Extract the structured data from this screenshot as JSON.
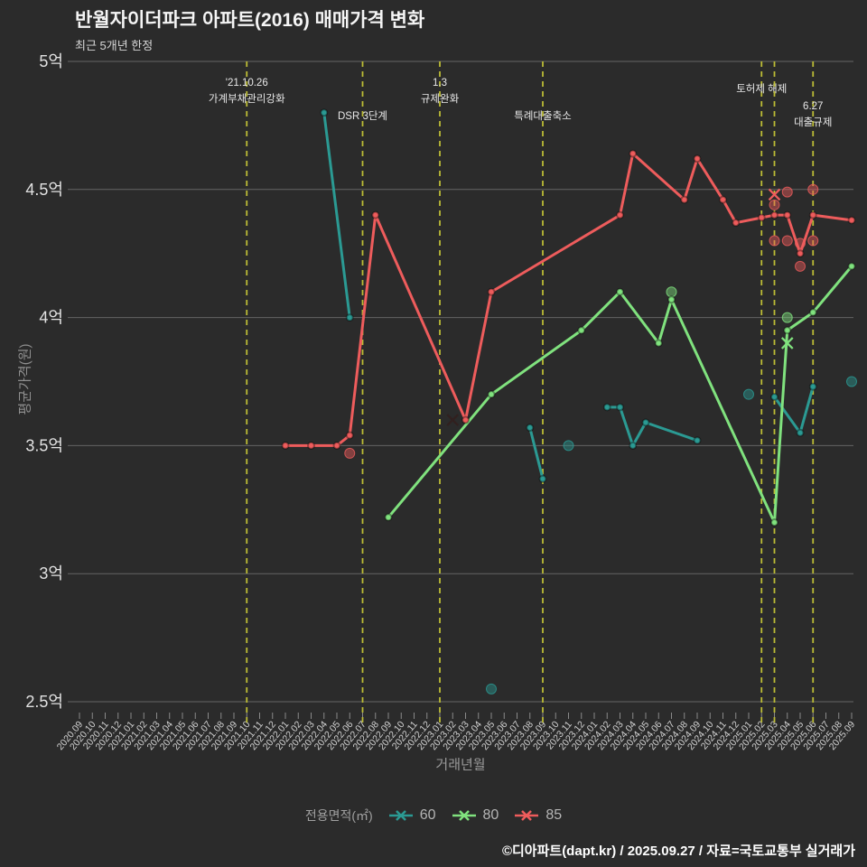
{
  "header": {
    "title": "반월자이더파크 아파트(2016) 매매가격 변화",
    "subtitle": "최근 5개년 한정"
  },
  "footer": {
    "credit": "©디아파트(dapt.kr) / 2025.09.27 / 자료=국토교통부 실거래가"
  },
  "legend": {
    "label": "전용면적(㎡)",
    "items": [
      {
        "label": "60",
        "color": "#2b9a93"
      },
      {
        "label": "80",
        "color": "#80e27e"
      },
      {
        "label": "85",
        "color": "#ee5c5c"
      }
    ]
  },
  "colors": {
    "background": "#2b2b2b",
    "gridline": "#787878",
    "vline": "#bcbc35",
    "tick": "#8a8a8a",
    "annotation_text": "#e8e8e8",
    "ytick_text": "#e2e2e2",
    "xtick_text": "#d2d2d2"
  },
  "chart_data": {
    "type": "line",
    "title": "반월자이더파크 아파트(2016) 매매가격 변화",
    "subtitle": "최근 5개년 한정",
    "xlabel": "거래년월",
    "ylabel": "평균가격(원)",
    "unit": "억",
    "ylim": [
      2.5,
      5.0
    ],
    "grid": true,
    "legend_position": "bottom",
    "yticks": [
      {
        "value": 2.5,
        "label": "2.5억"
      },
      {
        "value": 3.0,
        "label": "3억"
      },
      {
        "value": 3.5,
        "label": "3.5억"
      },
      {
        "value": 4.0,
        "label": "4억"
      },
      {
        "value": 4.5,
        "label": "4.5억"
      },
      {
        "value": 5.0,
        "label": "5억"
      }
    ],
    "x_categories": [
      "2020.09",
      "2020.10",
      "2020.11",
      "2020.12",
      "2021.01",
      "2021.02",
      "2021.03",
      "2021.04",
      "2021.05",
      "2021.06",
      "2021.07",
      "2021.08",
      "2021.09",
      "2021.10",
      "2021.11",
      "2021.12",
      "2022.01",
      "2022.02",
      "2022.03",
      "2022.04",
      "2022.05",
      "2022.06",
      "2022.07",
      "2022.08",
      "2022.09",
      "2022.10",
      "2022.11",
      "2022.12",
      "2023.01",
      "2023.02",
      "2023.03",
      "2023.04",
      "2023.05",
      "2023.06",
      "2023.07",
      "2023.08",
      "2023.09",
      "2023.10",
      "2023.11",
      "2023.12",
      "2024.01",
      "2024.02",
      "2024.03",
      "2024.04",
      "2024.05",
      "2024.06",
      "2024.07",
      "2024.08",
      "2024.09",
      "2024.10",
      "2024.11",
      "2024.12",
      "2025.01",
      "2025.02",
      "2025.03",
      "2025.04",
      "2025.05",
      "2025.06",
      "2025.07",
      "2025.08",
      "2025.09"
    ],
    "series": [
      {
        "name": "60",
        "color": "#2b9a93",
        "segments": [
          [
            [
              "2022.04",
              4.8
            ],
            [
              "2022.06",
              4.0
            ]
          ],
          [
            [
              "2023.08",
              3.57
            ],
            [
              "2023.09",
              3.37
            ]
          ],
          [
            [
              "2024.02",
              3.65
            ],
            [
              "2024.03",
              3.65
            ],
            [
              "2024.04",
              3.5
            ],
            [
              "2024.05",
              3.59
            ],
            [
              "2024.09",
              3.52
            ]
          ],
          [
            [
              "2025.03",
              3.69
            ],
            [
              "2025.05",
              3.55
            ],
            [
              "2025.06",
              3.73
            ]
          ]
        ],
        "scatter": [
          [
            "2023.05",
            2.55
          ],
          [
            "2023.11",
            3.5
          ],
          [
            "2025.01",
            3.7
          ],
          [
            "2025.09",
            3.75
          ]
        ],
        "x_markers": []
      },
      {
        "name": "80",
        "color": "#80e27e",
        "segments": [
          [
            [
              "2022.09",
              3.22
            ],
            [
              "2023.05",
              3.7
            ],
            [
              "2023.12",
              3.95
            ],
            [
              "2024.03",
              4.1
            ],
            [
              "2024.06",
              3.9
            ],
            [
              "2024.07",
              4.07
            ],
            [
              "2025.03",
              3.2
            ],
            [
              "2025.04",
              3.95
            ],
            [
              "2025.06",
              4.02
            ],
            [
              "2025.09",
              4.2
            ]
          ]
        ],
        "scatter": [
          [
            "2024.07",
            4.1
          ],
          [
            "2025.04",
            4.0
          ]
        ],
        "x_markers": [
          [
            "2025.04",
            3.9
          ]
        ]
      },
      {
        "name": "85",
        "color": "#ee5c5c",
        "segments": [
          [
            [
              "2022.01",
              3.5
            ],
            [
              "2022.03",
              3.5
            ],
            [
              "2022.05",
              3.5
            ],
            [
              "2022.06",
              3.54
            ],
            [
              "2022.08",
              4.4
            ],
            [
              "2023.03",
              3.6
            ],
            [
              "2023.05",
              4.1
            ],
            [
              "2024.03",
              4.4
            ],
            [
              "2024.04",
              4.64
            ],
            [
              "2024.08",
              4.46
            ],
            [
              "2024.09",
              4.62
            ],
            [
              "2024.11",
              4.46
            ],
            [
              "2024.12",
              4.37
            ],
            [
              "2025.02",
              4.39
            ],
            [
              "2025.03",
              4.4
            ],
            [
              "2025.04",
              4.4
            ],
            [
              "2025.05",
              4.25
            ],
            [
              "2025.06",
              4.4
            ],
            [
              "2025.09",
              4.38
            ]
          ]
        ],
        "scatter": [
          [
            "2022.06",
            3.47
          ],
          [
            "2025.03",
            4.44
          ],
          [
            "2025.03",
            4.3
          ],
          [
            "2025.04",
            4.49
          ],
          [
            "2025.04",
            4.3
          ],
          [
            "2025.05",
            4.29
          ],
          [
            "2025.05",
            4.2
          ],
          [
            "2025.06",
            4.5
          ],
          [
            "2025.06",
            4.3
          ]
        ],
        "x_markers": [
          [
            "2025.03",
            4.48
          ]
        ]
      }
    ],
    "extra_markers": [
      {
        "month": "2023.02",
        "value": 3.6,
        "marker": "x",
        "color": "#31201f"
      }
    ],
    "vlines": [
      {
        "month": "2021.10",
        "labels": [
          "'21.10.26",
          "가계부채관리강화"
        ],
        "label_ys": [
          91,
          109
        ]
      },
      {
        "month": "2022.07",
        "labels": [
          "DSR 3단계"
        ],
        "label_ys": [
          128
        ]
      },
      {
        "month": "2023.01",
        "labels": [
          "1.3",
          "규제완화"
        ],
        "label_ys": [
          91,
          109
        ]
      },
      {
        "month": "2023.09",
        "labels": [
          "특례대출축소"
        ],
        "label_ys": [
          128
        ]
      },
      {
        "month": "2025.02",
        "labels": [
          "토허제 해제"
        ],
        "label_ys": [
          98
        ]
      },
      {
        "month": "2025.03",
        "labels": [],
        "label_ys": []
      },
      {
        "month": "2025.06",
        "labels": [
          "6.27",
          "대출규제"
        ],
        "label_ys": [
          117,
          135
        ]
      }
    ]
  }
}
